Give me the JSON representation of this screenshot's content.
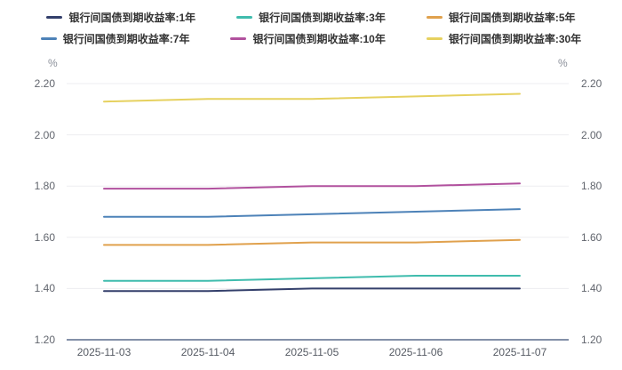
{
  "chart_data": {
    "type": "line",
    "title": "",
    "x": [
      "2025-11-03",
      "2025-11-04",
      "2025-11-05",
      "2025-11-06",
      "2025-11-07"
    ],
    "series": [
      {
        "name": "银行间国债到期收益率:1年",
        "color": "#333f6b",
        "values": [
          1.39,
          1.39,
          1.4,
          1.4,
          1.4
        ]
      },
      {
        "name": "银行间国债到期收益率:3年",
        "color": "#3fbcad",
        "values": [
          1.43,
          1.43,
          1.44,
          1.45,
          1.45
        ]
      },
      {
        "name": "银行间国债到期收益率:5年",
        "color": "#e0a14d",
        "values": [
          1.57,
          1.57,
          1.58,
          1.58,
          1.59
        ]
      },
      {
        "name": "银行间国债到期收益率:7年",
        "color": "#4d82b8",
        "values": [
          1.68,
          1.68,
          1.69,
          1.7,
          1.71
        ]
      },
      {
        "name": "银行间国债到期收益率:10年",
        "color": "#b1519e",
        "values": [
          1.79,
          1.79,
          1.8,
          1.8,
          1.81
        ]
      },
      {
        "name": "银行间国债到期收益率:30年",
        "color": "#e6d15f",
        "values": [
          2.13,
          2.14,
          2.14,
          2.15,
          2.16
        ]
      }
    ],
    "ylim": [
      1.2,
      2.2
    ],
    "yticks": [
      "2.20",
      "2.00",
      "1.80",
      "1.60",
      "1.40",
      "1.20"
    ],
    "y_unit": "%",
    "grid": true,
    "legend_position": "top",
    "legend_rows": [
      [
        0,
        1,
        2
      ],
      [
        3,
        4,
        5
      ]
    ],
    "grid_color": "#ededf0",
    "axis_line_color": "#5a6b8c"
  }
}
